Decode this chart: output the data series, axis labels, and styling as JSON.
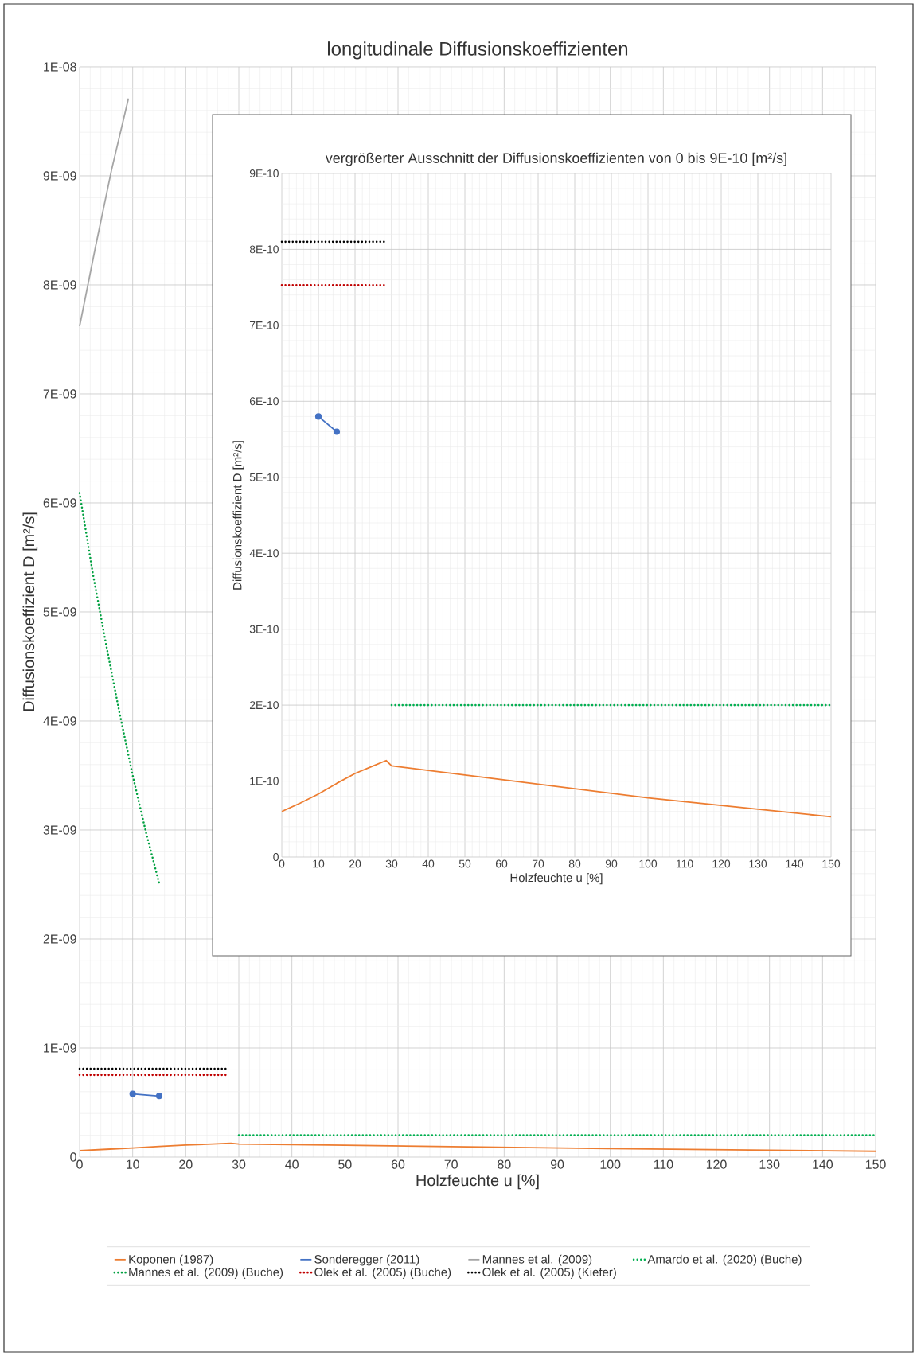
{
  "chart_data": [
    {
      "type": "line",
      "title": "longitudinale Diffusionskoeffizienten",
      "xlabel": "Holzfeuchte u [%]",
      "ylabel": "Diffusionskoeffizient D [m²/s]",
      "xlim": [
        0,
        150
      ],
      "xticks": [
        0,
        10,
        20,
        30,
        40,
        50,
        60,
        70,
        80,
        90,
        100,
        110,
        120,
        130,
        140,
        150
      ],
      "ylim": [
        0,
        1e-08
      ],
      "yticks": [
        0,
        {
          "value": 1e-09,
          "label": "1E-09"
        },
        {
          "value": 2e-09,
          "label": "2E-09"
        },
        {
          "value": 3e-09,
          "label": "3E-09"
        },
        {
          "value": 4e-09,
          "label": "4E-09"
        },
        {
          "value": 5e-09,
          "label": "5E-09"
        },
        {
          "value": 6e-09,
          "label": "6E-09"
        },
        {
          "value": 7e-09,
          "label": "7E-09"
        },
        {
          "value": 8e-09,
          "label": "8E-09"
        },
        {
          "value": 9e-09,
          "label": "9E-09"
        },
        {
          "value": 1e-08,
          "label": "1E-08"
        }
      ],
      "grid": true,
      "legend": "bottom",
      "series": [
        {
          "name": "Koponen (1987)",
          "color": "#ed7d31",
          "line_style": "solid",
          "x": [
            0,
            5,
            10,
            15,
            20,
            25,
            28.5,
            30,
            50,
            100,
            150
          ],
          "values": [
            6e-11,
            7.1e-11,
            8.3e-11,
            9.7e-11,
            1.1e-10,
            1.2e-10,
            1.27e-10,
            1.2e-10,
            1.08e-10,
            7.8e-11,
            5.3e-11
          ]
        },
        {
          "name": "Sonderegger (2011)",
          "color": "#4472c4",
          "line_style": "solid",
          "marker": "circle",
          "x": [
            10,
            15
          ],
          "values": [
            5.8e-10,
            5.6e-10
          ]
        },
        {
          "name": "Mannes et al. (2009)",
          "color": "#a5a5a5",
          "line_style": "solid",
          "x": [
            0,
            3,
            6,
            9.2
          ],
          "values": [
            7.62e-09,
            8.35e-09,
            9.05e-09,
            9.71e-09
          ]
        },
        {
          "name": "Amardo et al. (2020) (Buche)",
          "color": "#00b050",
          "line_style": "dotted",
          "x": [
            30,
            150
          ],
          "values": [
            2e-10,
            2e-10
          ]
        },
        {
          "name": "Mannes et al. (2009) (Buche)",
          "color": "#00a040",
          "line_style": "dotted",
          "x": [
            0,
            2.5,
            5,
            7.5,
            10,
            12.5,
            15
          ],
          "values": [
            6.09e-09,
            5.35e-09,
            4.7e-09,
            4.08e-09,
            3.5e-09,
            2.98e-09,
            2.51e-09
          ]
        },
        {
          "name": "Olek et al. (2005) (Buche)",
          "color": "#c00000",
          "line_style": "dotted",
          "x": [
            0,
            28
          ],
          "values": [
            7.53e-10,
            7.53e-10
          ]
        },
        {
          "name": "Olek et al. (2005) (Kiefer)",
          "color": "#000000",
          "line_style": "dotted",
          "x": [
            0,
            28
          ],
          "values": [
            8.1e-10,
            8.1e-10
          ]
        }
      ]
    },
    {
      "type": "line",
      "title": "vergrößerter Ausschnitt der Diffusionskoeffizienten von 0 bis 9E-10 [m²/s]",
      "xlabel": "Holzfeuchte u [%]",
      "ylabel": "Diffusionskoeffizient D [m²/s]",
      "xlim": [
        0,
        150
      ],
      "xticks": [
        0,
        10,
        20,
        30,
        40,
        50,
        60,
        70,
        80,
        90,
        100,
        110,
        120,
        130,
        140,
        150
      ],
      "ylim": [
        0,
        9e-10
      ],
      "yticks": [
        0,
        {
          "value": 1e-10,
          "label": "1E-10"
        },
        {
          "value": 2e-10,
          "label": "2E-10"
        },
        {
          "value": 3e-10,
          "label": "3E-10"
        },
        {
          "value": 4e-10,
          "label": "4E-10"
        },
        {
          "value": 5e-10,
          "label": "5E-10"
        },
        {
          "value": 6e-10,
          "label": "6E-10"
        },
        {
          "value": 7e-10,
          "label": "7E-10"
        },
        {
          "value": 8e-10,
          "label": "8E-10"
        },
        {
          "value": 9e-10,
          "label": "9E-10"
        }
      ],
      "grid": true,
      "series": [
        {
          "color": "#ed7d31",
          "line_style": "solid",
          "x": [
            0,
            5,
            10,
            15,
            20,
            25,
            28.5,
            30,
            50,
            100,
            150
          ],
          "values": [
            6e-11,
            7.1e-11,
            8.3e-11,
            9.7e-11,
            1.1e-10,
            1.2e-10,
            1.27e-10,
            1.2e-10,
            1.08e-10,
            7.8e-11,
            5.3e-11
          ]
        },
        {
          "color": "#4472c4",
          "line_style": "solid",
          "marker": "circle",
          "x": [
            10,
            15
          ],
          "values": [
            5.8e-10,
            5.6e-10
          ]
        },
        {
          "color": "#00b050",
          "line_style": "dotted",
          "x": [
            30,
            150
          ],
          "values": [
            2e-10,
            2e-10
          ]
        },
        {
          "color": "#c00000",
          "line_style": "dotted",
          "x": [
            0,
            28
          ],
          "values": [
            7.53e-10,
            7.53e-10
          ]
        },
        {
          "color": "#000000",
          "line_style": "dotted",
          "x": [
            0,
            28
          ],
          "values": [
            8.1e-10,
            8.1e-10
          ]
        }
      ]
    }
  ]
}
